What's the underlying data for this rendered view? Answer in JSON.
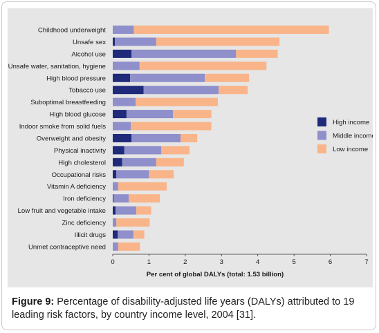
{
  "chart_data": {
    "type": "bar",
    "orientation": "horizontal",
    "stacked": true,
    "categories": [
      "Childhood underweight",
      "Unsafe sex",
      "Alcohol use",
      "Unsafe water, sanitation, hygiene",
      "High blood pressure",
      "Tobacco use",
      "Suboptimal breastfeeding",
      "High blood glucose",
      "Indoor smoke from solid fuels",
      "Overweight and obesity",
      "Physical inactivity",
      "High cholesterol",
      "Occupational risks",
      "Vitamin A deficiency",
      "Iron deficiency",
      "Low fruit and vegetable intake",
      "Zinc deficiency",
      "Illicit drugs",
      "Unmet contraceptive need"
    ],
    "series": [
      {
        "name": "High income",
        "color": "#1f2a7a",
        "values": [
          0.0,
          0.06,
          0.52,
          0.0,
          0.48,
          0.85,
          0.0,
          0.38,
          0.0,
          0.52,
          0.32,
          0.26,
          0.1,
          0.0,
          0.02,
          0.08,
          0.0,
          0.14,
          0.0
        ]
      },
      {
        "name": "Middle income",
        "color": "#8f8fcc",
        "values": [
          0.58,
          1.14,
          2.88,
          0.74,
          2.06,
          2.07,
          0.63,
          1.28,
          0.5,
          1.35,
          1.02,
          0.94,
          0.9,
          0.15,
          0.42,
          0.57,
          0.1,
          0.43,
          0.15
        ]
      },
      {
        "name": "Low income",
        "color": "#f9b589",
        "values": [
          5.38,
          3.4,
          1.15,
          3.5,
          1.22,
          0.8,
          2.27,
          1.06,
          2.22,
          0.46,
          0.78,
          0.76,
          0.68,
          1.34,
          0.86,
          0.41,
          0.92,
          0.3,
          0.6
        ]
      }
    ],
    "xlabel": "Per cent of global DALYs (total: 1.53 billion)",
    "ylabel": "",
    "xlim": [
      0,
      7
    ],
    "xticks": [
      0,
      1,
      2,
      3,
      4,
      5,
      6,
      7
    ],
    "grid": false,
    "legend_position": "right"
  },
  "caption": {
    "label": "Figure 9:",
    "text": " Percentage of disability-adjusted life years (DALYs) attributed to 19 leading risk factors, by country income level, 2004 [31]."
  }
}
